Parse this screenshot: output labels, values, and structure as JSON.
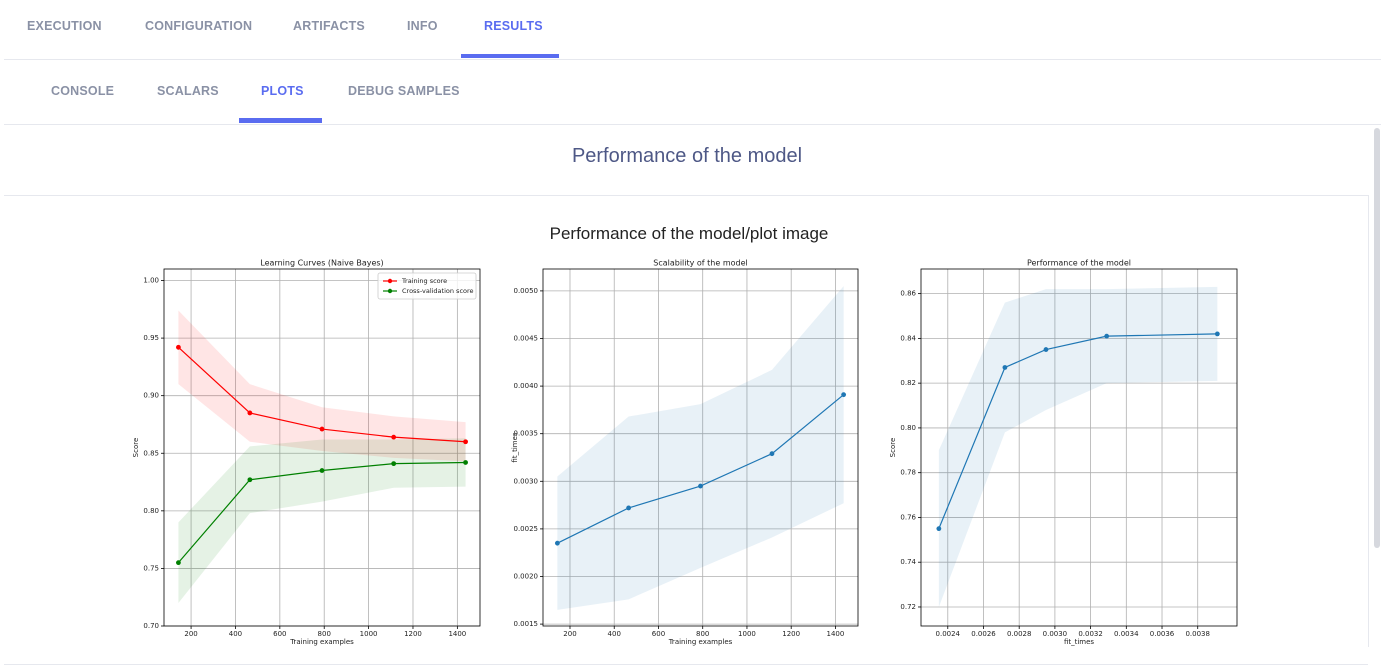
{
  "tabs": [
    "EXECUTION",
    "CONFIGURATION",
    "ARTIFACTS",
    "INFO",
    "RESULTS"
  ],
  "subtabs": [
    "CONSOLE",
    "SCALARS",
    "PLOTS",
    "DEBUG SAMPLES"
  ],
  "section_title": "Performance of the model",
  "plot_title": "Performance of the model/plot image",
  "chart_data": [
    {
      "type": "line",
      "title": "Learning Curves (Naive Bayes)",
      "xlabel": "Training examples",
      "ylabel": "Score",
      "x": [
        143,
        465,
        790,
        1113,
        1437
      ],
      "series": [
        {
          "name": "Training score",
          "color": "#ff0000",
          "values": [
            0.942,
            0.885,
            0.871,
            0.864,
            0.86
          ],
          "std": [
            0.032,
            0.025,
            0.019,
            0.018,
            0.017
          ]
        },
        {
          "name": "Cross-validation score",
          "color": "#008000",
          "values": [
            0.755,
            0.827,
            0.835,
            0.841,
            0.842
          ],
          "std": [
            0.035,
            0.029,
            0.027,
            0.021,
            0.021
          ]
        }
      ],
      "xlim": [
        78,
        1502
      ],
      "ylim": [
        0.7,
        1.01
      ],
      "xticks": [
        200,
        400,
        600,
        800,
        1000,
        1200,
        1400
      ],
      "yticks": [
        {
          "value": 0.7,
          "label": "0.70"
        },
        0.75,
        {
          "value": 0.8,
          "label": "0.80"
        },
        0.85,
        {
          "value": 0.9,
          "label": "0.90"
        },
        0.95,
        {
          "value": 1.0,
          "label": "1.00"
        }
      ],
      "grid": true,
      "legend": "upper right"
    },
    {
      "type": "line",
      "title": "Scalability of the model",
      "xlabel": "Training examples",
      "ylabel": "fit_times",
      "x": [
        143,
        465,
        790,
        1113,
        1437
      ],
      "series": [
        {
          "color": "#1f77b4",
          "values": [
            0.00235,
            0.00272,
            0.00295,
            0.00329,
            0.00391
          ],
          "std": [
            0.0007,
            0.00096,
            0.00086,
            0.00088,
            0.00114
          ]
        }
      ],
      "xlim": [
        78,
        1502
      ],
      "ylim": [
        0.00148,
        0.00523
      ],
      "xticks": [
        200,
        400,
        600,
        800,
        1000,
        1200,
        1400
      ],
      "yticks": [
        0.0015,
        {
          "value": 0.002,
          "label": "0.0020"
        },
        0.0025,
        {
          "value": 0.003,
          "label": "0.0030"
        },
        0.0035,
        {
          "value": 0.004,
          "label": "0.0040"
        },
        0.0045,
        {
          "value": 0.005,
          "label": "0.0050"
        }
      ],
      "grid": true
    },
    {
      "type": "line",
      "title": "Performance of the model",
      "xlabel": "fit_times",
      "ylabel": "Score",
      "x": [
        0.00235,
        0.00272,
        0.00295,
        0.00329,
        0.00391
      ],
      "series": [
        {
          "color": "#1f77b4",
          "values": [
            0.755,
            0.827,
            0.835,
            0.841,
            0.842
          ],
          "std": [
            0.035,
            0.029,
            0.027,
            0.021,
            0.021
          ]
        }
      ],
      "xlim": [
        0.00225,
        0.00402
      ],
      "ylim": [
        0.7115,
        0.871
      ],
      "xticks": [
        0.0024,
        0.0026,
        0.0028,
        {
          "value": 0.003,
          "label": "0.0030"
        },
        0.0032,
        0.0034,
        0.0036,
        0.0038
      ],
      "yticks": [
        0.72,
        0.74,
        0.76,
        0.78,
        {
          "value": 0.8,
          "label": "0.80"
        },
        0.82,
        0.84,
        0.86
      ],
      "grid": true
    }
  ]
}
